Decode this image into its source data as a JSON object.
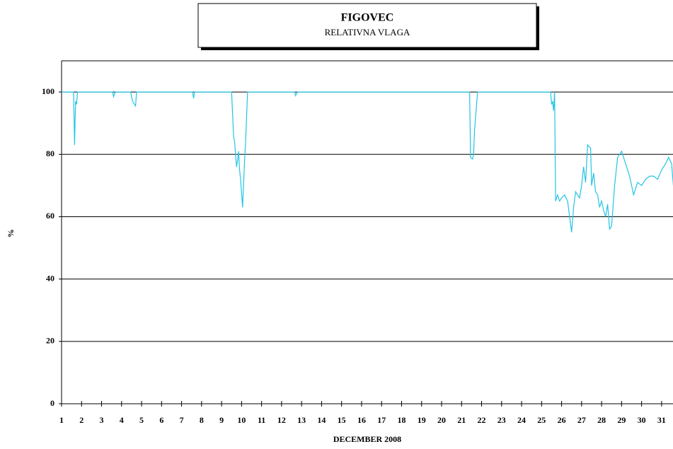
{
  "chart_data": {
    "type": "line",
    "title": "FIGOVEC",
    "subtitle": "RELATIVNA VLAGA",
    "x_label": "DECEMBER 2008",
    "y_label": "%",
    "color": "#22c4e4",
    "x": [
      1,
      1.6,
      1.65,
      1.7,
      1.75,
      1.8,
      1.85,
      3.55,
      3.6,
      3.65,
      3.7,
      4.45,
      4.55,
      4.65,
      4.7,
      4.75,
      7.55,
      7.6,
      7.65,
      9.5,
      9.6,
      9.65,
      9.75,
      9.8,
      9.85,
      9.9,
      9.95,
      10.05,
      10.15,
      10.2,
      10.3,
      12.65,
      12.7,
      12.75,
      12.8,
      21.4,
      21.45,
      21.55,
      21.6,
      21.65,
      21.8,
      25.45,
      25.5,
      25.55,
      25.6,
      25.65,
      25.7,
      25.8,
      25.9,
      26.0,
      26.15,
      26.3,
      26.4,
      26.5,
      26.6,
      26.7,
      26.8,
      26.9,
      27.0,
      27.1,
      27.2,
      27.3,
      27.45,
      27.5,
      27.6,
      27.7,
      27.8,
      27.9,
      28.0,
      28.1,
      28.2,
      28.3,
      28.4,
      28.5,
      28.65,
      28.8,
      29.0,
      29.2,
      29.4,
      29.6,
      29.8,
      30.0,
      30.2,
      30.4,
      30.6,
      30.8,
      31.0,
      31.2,
      31.35,
      31.5,
      31.6
    ],
    "values": [
      100,
      100,
      83,
      97,
      96,
      100,
      100,
      100,
      98.5,
      99.5,
      100,
      100,
      97,
      96,
      95.5,
      100,
      100,
      98,
      100,
      100,
      86,
      84,
      76,
      78,
      81,
      75,
      72,
      63,
      78,
      84,
      100,
      100,
      98.8,
      99.5,
      100,
      100,
      79,
      78.5,
      80,
      88,
      100,
      100,
      96,
      97,
      94,
      100,
      65,
      67,
      65,
      66,
      67,
      65,
      60,
      55,
      63,
      68,
      67,
      66,
      70,
      76,
      71,
      83,
      82,
      70,
      74,
      68,
      67,
      63,
      65,
      62,
      60,
      64,
      56,
      57,
      70,
      79,
      81,
      77,
      73,
      67,
      71,
      70,
      72,
      73,
      73,
      72,
      75,
      77,
      79,
      77,
      69
    ],
    "xlim": [
      1,
      31.57
    ],
    "ylim": [
      0,
      110
    ],
    "xticks": [
      1,
      2,
      3,
      4,
      5,
      6,
      7,
      8,
      9,
      10,
      11,
      12,
      13,
      14,
      15,
      16,
      17,
      18,
      19,
      20,
      21,
      22,
      23,
      24,
      25,
      26,
      27,
      28,
      29,
      30,
      31
    ],
    "yticks": [
      0,
      20,
      40,
      60,
      80,
      100
    ],
    "grid": true
  }
}
